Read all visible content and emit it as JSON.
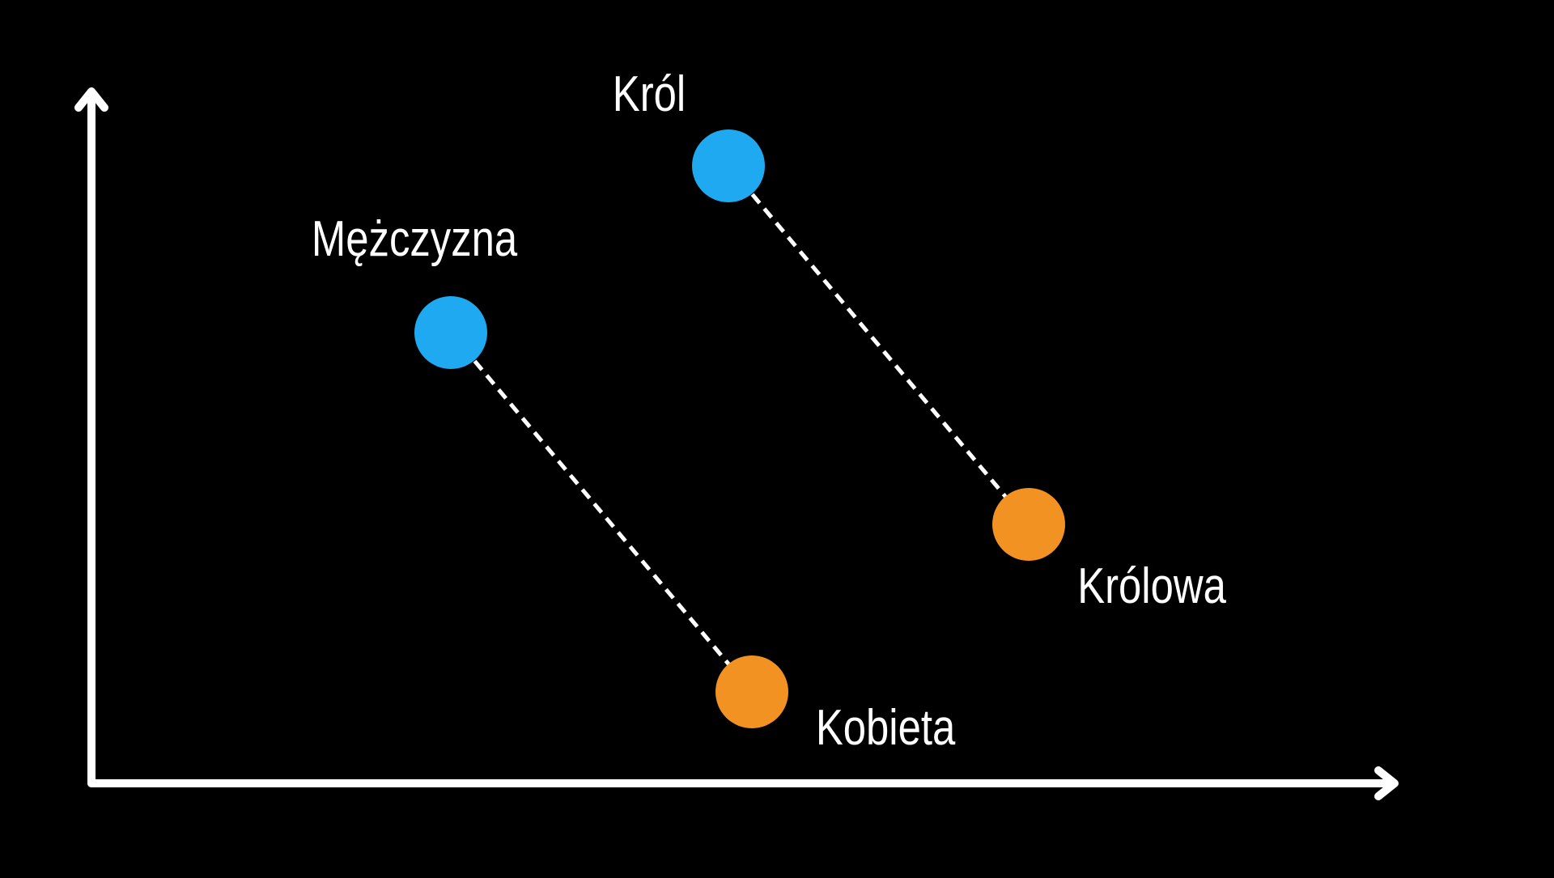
{
  "colors": {
    "background": "#000000",
    "axes": "#ffffff",
    "connector": "#ffffff",
    "male_point": "#1fa9f1",
    "female_point": "#f29222",
    "label_text": "#ffffff"
  },
  "words": {
    "krol": "Król",
    "mezczyzna": "Mężczyzna",
    "krolowa": "Królowa",
    "kobieta": "Kobieta"
  },
  "pairs": [
    {
      "from": "krol",
      "to": "krolowa"
    },
    {
      "from": "mezczyzna",
      "to": "kobieta"
    }
  ]
}
